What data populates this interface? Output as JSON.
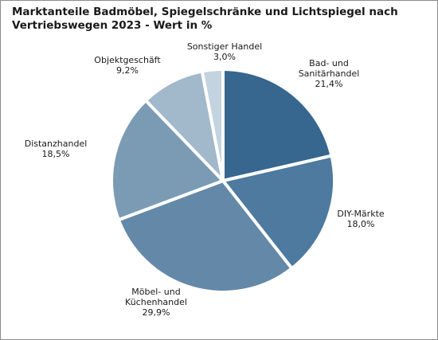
{
  "chart_data": {
    "type": "pie",
    "title_lines": [
      "Marktanteile Badmöbel, Spiegelschränke und Lichtspiegel nach",
      "Vertriebswegen 2023 - Wert in %"
    ],
    "slices": [
      {
        "label_lines": [
          "Bad- und",
          "Sanitärhandel"
        ],
        "value": 21.4,
        "value_text": "21,4%",
        "color": "#37678f"
      },
      {
        "label_lines": [
          "DIY-Märkte"
        ],
        "value": 18.0,
        "value_text": "18,0%",
        "color": "#4d7a9e"
      },
      {
        "label_lines": [
          "Möbel- und",
          "Küchenhandel"
        ],
        "value": 29.9,
        "value_text": "29,9%",
        "color": "#6489a8"
      },
      {
        "label_lines": [
          "Distanzhandel"
        ],
        "value": 18.5,
        "value_text": "18,5%",
        "color": "#7b9bb5"
      },
      {
        "label_lines": [
          "Objektgeschäft"
        ],
        "value": 9.2,
        "value_text": "9,2%",
        "color": "#a2b8cb"
      },
      {
        "label_lines": [
          "Sonstiger Handel"
        ],
        "value": 3.0,
        "value_text": "3,0%",
        "color": "#c3d3df"
      }
    ]
  }
}
